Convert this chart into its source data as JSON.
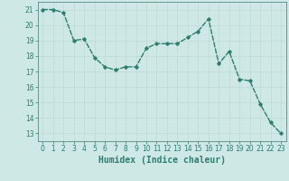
{
  "x": [
    0,
    1,
    2,
    3,
    4,
    5,
    6,
    7,
    8,
    9,
    10,
    11,
    12,
    13,
    14,
    15,
    16,
    17,
    18,
    19,
    20,
    21,
    22,
    23
  ],
  "y": [
    21.0,
    21.0,
    20.8,
    19.0,
    19.1,
    17.9,
    17.3,
    17.1,
    17.3,
    17.3,
    18.5,
    18.8,
    18.8,
    18.8,
    19.2,
    19.6,
    20.4,
    17.5,
    18.3,
    16.5,
    16.4,
    14.9,
    13.7,
    13.0
  ],
  "xlabel": "Humidex (Indice chaleur)",
  "line_color": "#2e7d6e",
  "marker": "D",
  "marker_size": 1.8,
  "line_width": 1.0,
  "ylim": [
    12.5,
    21.5
  ],
  "xlim": [
    -0.5,
    23.5
  ],
  "yticks": [
    13,
    14,
    15,
    16,
    17,
    18,
    19,
    20,
    21
  ],
  "xticks": [
    0,
    1,
    2,
    3,
    4,
    5,
    6,
    7,
    8,
    9,
    10,
    11,
    12,
    13,
    14,
    15,
    16,
    17,
    18,
    19,
    20,
    21,
    22,
    23
  ],
  "bg_color": "#cde8e5",
  "grid_color_major": "#c4dbd8",
  "grid_color_minor": "#d8ecea",
  "tick_label_fontsize": 5.5,
  "xlabel_fontsize": 7.0,
  "spine_color": "#5a8a82"
}
